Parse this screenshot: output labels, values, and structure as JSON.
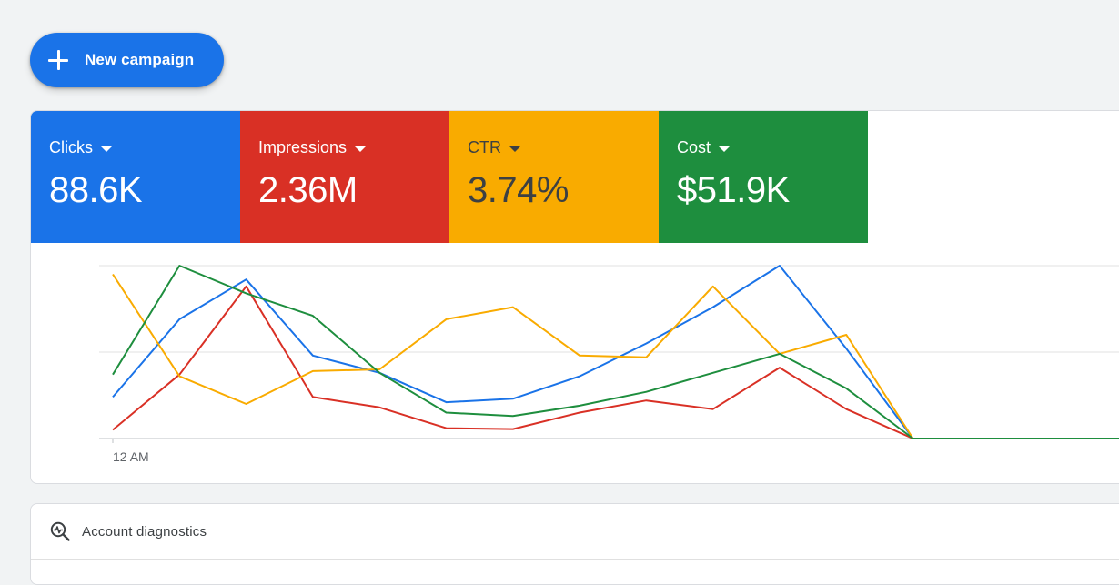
{
  "new_campaign": {
    "label": "New campaign",
    "icon": "plus-icon"
  },
  "metrics": [
    {
      "label": "Clicks",
      "value": "88.6K",
      "bg": "#1a73e8",
      "fg": "#ffffff"
    },
    {
      "label": "Impressions",
      "value": "2.36M",
      "bg": "#d93025",
      "fg": "#ffffff"
    },
    {
      "label": "CTR",
      "value": "3.74%",
      "bg": "#f9ab00",
      "fg": "#3c4043"
    },
    {
      "label": "Cost",
      "value": "$51.9K",
      "bg": "#1e8e3e",
      "fg": "#ffffff"
    }
  ],
  "chart_data": {
    "type": "line",
    "xlabel_start": "12 AM",
    "grid": true,
    "series": [
      {
        "color": "#1a73e8",
        "values": [
          0.24,
          0.69,
          0.92,
          0.48,
          0.38,
          0.21,
          0.23,
          0.36,
          0.55,
          0.76,
          1.0,
          0.52,
          0,
          0,
          0,
          0,
          0
        ]
      },
      {
        "color": "#d93025",
        "values": [
          0.05,
          0.37,
          0.88,
          0.24,
          0.18,
          0.06,
          0.055,
          0.15,
          0.22,
          0.17,
          0.41,
          0.17,
          0,
          0,
          0,
          0,
          0
        ]
      },
      {
        "color": "#f9ab00",
        "values": [
          0.95,
          0.36,
          0.2,
          0.39,
          0.4,
          0.69,
          0.76,
          0.48,
          0.47,
          0.88,
          0.49,
          0.6,
          0,
          0,
          0,
          0,
          0
        ]
      },
      {
        "color": "#1e8e3e",
        "values": [
          0.37,
          1.0,
          0.84,
          0.71,
          0.38,
          0.15,
          0.13,
          0.19,
          0.27,
          0.38,
          0.49,
          0.29,
          0,
          0,
          0,
          0,
          0
        ]
      }
    ],
    "ylim": [
      0,
      1
    ]
  },
  "diagnostics": {
    "label": "Account diagnostics",
    "icon": "diagnostics-search-icon"
  }
}
